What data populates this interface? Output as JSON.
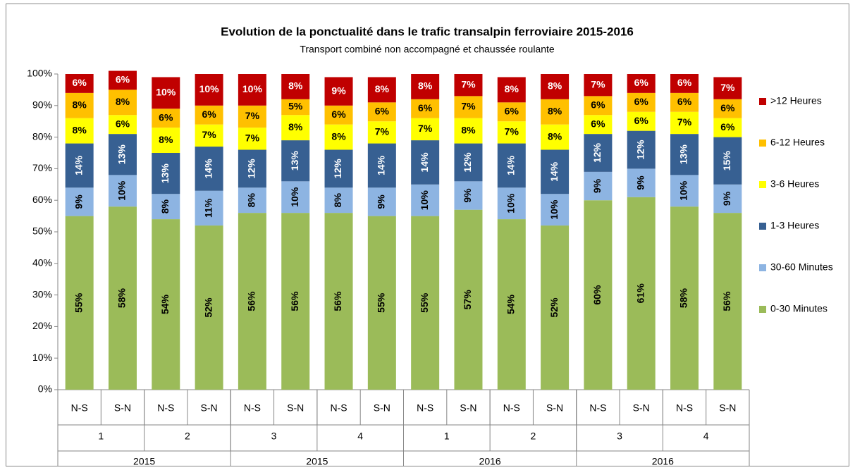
{
  "chart_data": {
    "type": "stacked_bar",
    "title": "Evolution de la ponctualité dans le trafic transalpin ferroviaire 2015-2016",
    "subtitle": "Transport combiné non accompagné et chaussée roulante",
    "categories": [
      "N-S",
      "S-N",
      "N-S",
      "S-N",
      "N-S",
      "S-N",
      "N-S",
      "S-N",
      "N-S",
      "S-N",
      "N-S",
      "S-N",
      "N-S",
      "S-N",
      "N-S",
      "S-N"
    ],
    "category_groups": [
      "1",
      "2",
      "3",
      "4",
      "1",
      "2",
      "3",
      "4"
    ],
    "category_supergroups": [
      "2015",
      "2015",
      "2016",
      "2016"
    ],
    "ylim": [
      0,
      100
    ],
    "yticks": [
      {
        "value": 0,
        "label": "0%"
      },
      {
        "value": 10,
        "label": "10%"
      },
      {
        "value": 20,
        "label": "20%"
      },
      {
        "value": 30,
        "label": "30%"
      },
      {
        "value": 40,
        "label": "40%"
      },
      {
        "value": 50,
        "label": "50%"
      },
      {
        "value": 60,
        "label": "60%"
      },
      {
        "value": 70,
        "label": "70%"
      },
      {
        "value": 80,
        "label": "80%"
      },
      {
        "value": 90,
        "label": "90%"
      },
      {
        "value": 100,
        "label": "100%"
      }
    ],
    "legend": "right",
    "series": [
      {
        "name": "0-30 Minutes",
        "color": "#9bbb59",
        "label_color": "#000000",
        "values": [
          55,
          58,
          54,
          52,
          56,
          56,
          56,
          55,
          55,
          57,
          54,
          52,
          60,
          61,
          58,
          56
        ],
        "value_labels": [
          "55%",
          "58%",
          "54%",
          "52%",
          "56%",
          "56%",
          "56%",
          "55%",
          "55%",
          "57%",
          "54%",
          "52%",
          "60%",
          "61%",
          "58%",
          "56%"
        ]
      },
      {
        "name": "30-60 Minutes",
        "color": "#8db4e2",
        "label_color": "#000000",
        "values": [
          9,
          10,
          8,
          11,
          8,
          10,
          8,
          9,
          10,
          9,
          10,
          10,
          9,
          9,
          10,
          9
        ],
        "value_labels": [
          "9%",
          "10%",
          "8%",
          "11%",
          "8%",
          "10%",
          "8%",
          "9%",
          "10%",
          "9%",
          "10%",
          "10%",
          "9%",
          "9%",
          "10%",
          "9%"
        ]
      },
      {
        "name": "1-3 Heures",
        "color": "#376092",
        "label_color": "#ffffff",
        "values": [
          14,
          13,
          13,
          14,
          12,
          13,
          12,
          14,
          14,
          12,
          14,
          14,
          12,
          12,
          13,
          15
        ],
        "value_labels": [
          "14%",
          "13%",
          "13%",
          "14%",
          "12%",
          "13%",
          "12%",
          "14%",
          "14%",
          "12%",
          "14%",
          "14%",
          "12%",
          "12%",
          "13%",
          "15%"
        ]
      },
      {
        "name": "3-6 Heures",
        "color": "#ffff00",
        "label_color": "#000000",
        "values": [
          8,
          6,
          8,
          7,
          7,
          8,
          8,
          7,
          7,
          8,
          7,
          8,
          6,
          6,
          7,
          6
        ],
        "value_labels": [
          "8%",
          "6%",
          "8%",
          "7%",
          "7%",
          "8%",
          "8%",
          "7%",
          "7%",
          "8%",
          "7%",
          "8%",
          "6%",
          "6%",
          "7%",
          "6%"
        ]
      },
      {
        "name": "6-12 Heures",
        "color": "#ffc000",
        "label_color": "#000000",
        "values": [
          8,
          8,
          6,
          6,
          7,
          5,
          6,
          6,
          6,
          7,
          6,
          8,
          6,
          6,
          6,
          6
        ],
        "value_labels": [
          "8%",
          "8%",
          "6%",
          "6%",
          "7%",
          "5%",
          "6%",
          "6%",
          "6%",
          "7%",
          "6%",
          "8%",
          "6%",
          "6%",
          "6%",
          "6%"
        ]
      },
      {
        "name": ">12 Heures",
        "color": "#c00000",
        "label_color": "#ffffff",
        "values": [
          6,
          6,
          10,
          10,
          10,
          8,
          9,
          8,
          8,
          7,
          8,
          8,
          7,
          6,
          6,
          7
        ],
        "value_labels": [
          "6%",
          "6%",
          "10%",
          "10%",
          "10%",
          "8%",
          "9%",
          "8%",
          "8%",
          "7%",
          "8%",
          "8%",
          "7%",
          "6%",
          "6%",
          "7%"
        ]
      }
    ]
  }
}
